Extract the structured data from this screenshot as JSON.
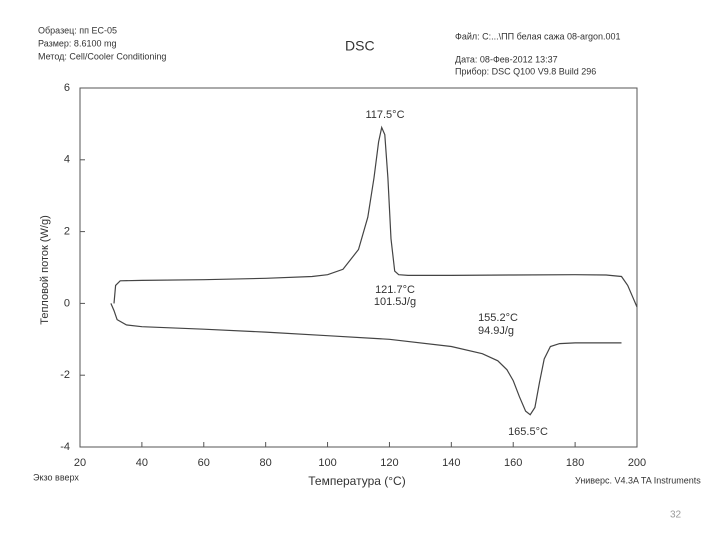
{
  "chart_data": {
    "type": "line",
    "title": "DSC",
    "header_left": [
      "Образец: пп ЕС-05",
      "Размер: 8.6100 mg",
      "Метод: Cell/Cooler Conditioning"
    ],
    "header_right": [
      "Файл: C:...\\ПП белая сажа 08-argon.001",
      "Дата: 08-Фев-2012 13:37",
      "Прибор: DSC Q100 V9.8 Build 296"
    ],
    "x_label": "Температура (°C)",
    "y_label": "Тепловой поток (W/g)",
    "exo_note": "Экзо вверх",
    "software_note": "Универс. V4.3A TA Instruments",
    "page_number": "32",
    "xlim": [
      20,
      200
    ],
    "xticks": [
      20,
      40,
      60,
      80,
      100,
      120,
      140,
      160,
      180,
      200
    ],
    "ylim": [
      -4,
      6
    ],
    "yticks": [
      -4,
      -2,
      0,
      2,
      4,
      6
    ],
    "annotations": [
      "117.5°C",
      "121.7°C",
      "101.5J/g",
      "155.2°C",
      "94.9J/g",
      "165.5°C"
    ],
    "series": [
      {
        "color": "#444",
        "x": [
          31,
          31.5,
          33,
          40,
          60,
          80,
          95,
          100,
          105,
          110,
          113,
          115,
          116.5,
          117.5,
          118.5,
          119.5,
          120.5,
          121.7,
          123,
          126,
          140,
          160,
          180,
          190,
          195,
          197,
          199,
          200
        ],
        "values": [
          0,
          0.5,
          0.63,
          0.64,
          0.66,
          0.7,
          0.75,
          0.8,
          0.95,
          1.5,
          2.4,
          3.5,
          4.5,
          4.9,
          4.7,
          3.5,
          1.8,
          0.9,
          0.8,
          0.78,
          0.78,
          0.79,
          0.8,
          0.79,
          0.75,
          0.5,
          0.1,
          -0.1
        ]
      },
      {
        "color": "#444",
        "x": [
          30,
          31,
          32,
          35,
          40,
          60,
          80,
          100,
          120,
          140,
          150,
          155,
          158,
          160,
          162,
          164,
          165.5,
          167,
          168.5,
          170,
          172,
          175,
          180,
          190,
          195
        ],
        "values": [
          0,
          -0.2,
          -0.45,
          -0.6,
          -0.65,
          -0.72,
          -0.8,
          -0.9,
          -1.0,
          -1.2,
          -1.4,
          -1.6,
          -1.85,
          -2.15,
          -2.6,
          -3.0,
          -3.1,
          -2.9,
          -2.2,
          -1.55,
          -1.2,
          -1.12,
          -1.1,
          -1.1,
          -1.1
        ]
      }
    ]
  }
}
